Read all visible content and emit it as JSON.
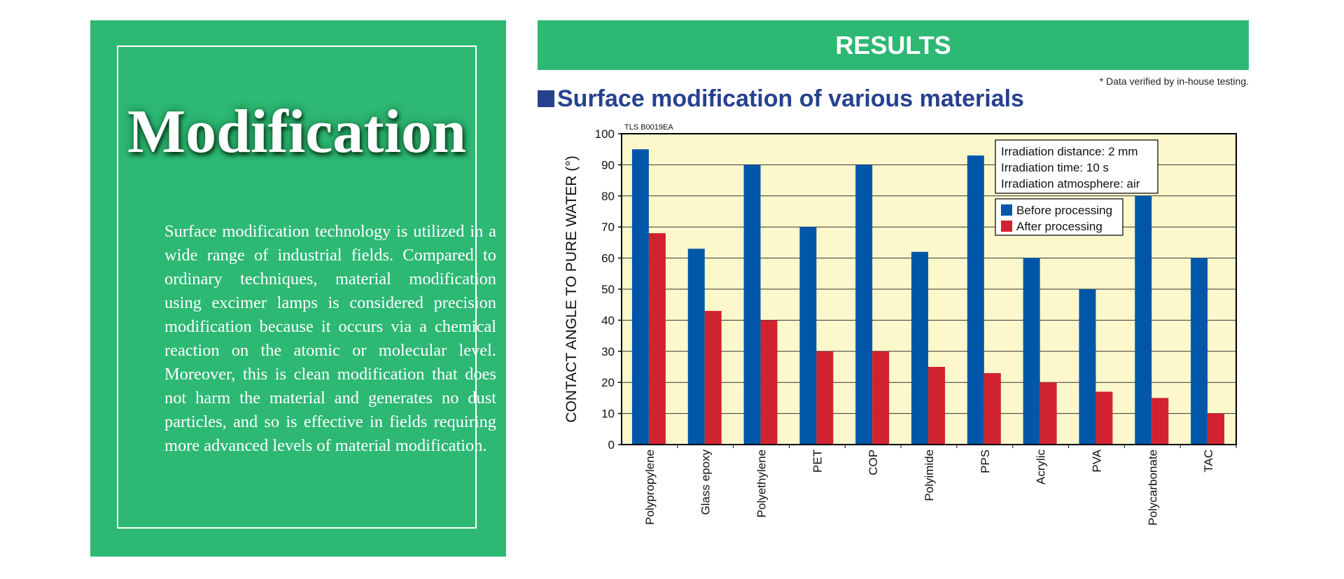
{
  "left": {
    "title": "Modification",
    "body": "Surface modification technology is utilized in a wide range of industrial fields. Compared to ordinary techniques, material modification using excimer lamps is considered precision modifica­tion because it occurs via a chemical reaction on the atomic or molecular level. Moreover, this is clean modification that does not harm the material and generates no dust particles, and so is effective in fields requiring more advanced levels of material modification."
  },
  "results": {
    "header": "RESULTS",
    "note": "* Data verified by in-house testing.",
    "subtitle": "Surface modification of various materials"
  },
  "colors": {
    "green": "#2db874",
    "before": "#0057aa",
    "after": "#d0232f",
    "plot_bg": "#fdf8cc",
    "title_blue": "#27418e"
  },
  "chart_data": {
    "type": "bar",
    "code": "TLS B0019EA",
    "ylabel": "CONTACT ANGLE TO PURE WATER (°)",
    "ylim": [
      0,
      100
    ],
    "yticks": [
      0,
      10,
      20,
      30,
      40,
      50,
      60,
      70,
      80,
      90,
      100
    ],
    "grid": true,
    "categories": [
      "Polypropylene",
      "Glass epoxy",
      "Polyethylene",
      "PET",
      "COP",
      "Polyimide",
      "PPS",
      "Acrylic",
      "PVA",
      "Polycarbonate",
      "TAC"
    ],
    "series": [
      {
        "name": "Before processing",
        "color": "#0057aa",
        "values": [
          95,
          63,
          90,
          70,
          90,
          62,
          93,
          60,
          50,
          80,
          60
        ]
      },
      {
        "name": "After processing",
        "color": "#d0232f",
        "values": [
          68,
          43,
          40,
          30,
          30,
          25,
          23,
          20,
          17,
          15,
          10
        ]
      }
    ],
    "conditions": [
      "Irradiation distance: 2 mm",
      "Irradiation time: 10 s",
      "Irradiation atmosphere: air"
    ],
    "legend_position": "top-right"
  }
}
